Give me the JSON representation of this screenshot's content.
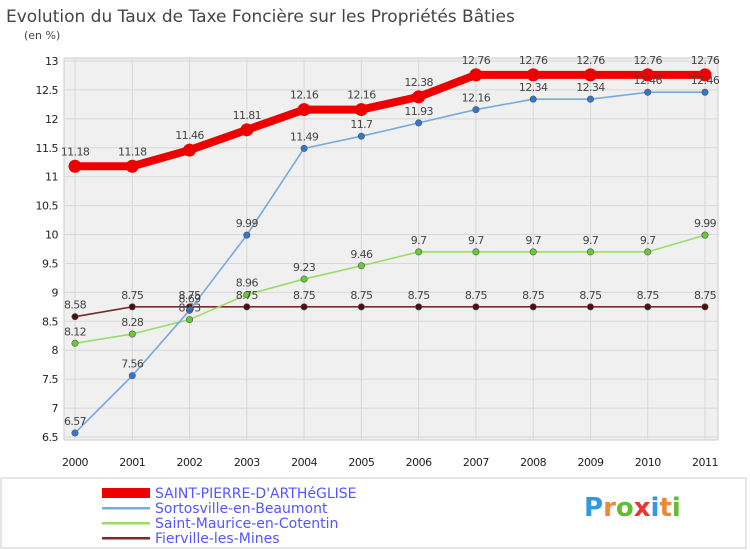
{
  "chart_data": {
    "type": "line",
    "title": "Evolution du Taux de Taxe Foncière sur les Propriétés Bâties",
    "ylabel": "(en %)",
    "xlabel": "",
    "x": [
      "2000",
      "2001",
      "2002",
      "2003",
      "2004",
      "2005",
      "2006",
      "2007",
      "2008",
      "2009",
      "2010",
      "2011"
    ],
    "ylim": [
      6.5,
      13
    ],
    "yticks": [
      6.5,
      7,
      7.5,
      8,
      8.5,
      9,
      9.5,
      10,
      10.5,
      11,
      11.5,
      12,
      12.5,
      13
    ],
    "yticklabels": [
      "6.5",
      "7",
      "7.5",
      "8",
      "8.5",
      "9",
      "9.5",
      "10",
      "10.5",
      "11",
      "11.5",
      "12",
      "12.5",
      "13"
    ],
    "grid": true,
    "legend_position": "bottom-left",
    "series": [
      {
        "name": "Fierville-les-Mines",
        "color": "#7a2a2a",
        "marker": "#4a1010",
        "values": [
          8.58,
          8.75,
          8.75,
          8.75,
          8.75,
          8.75,
          8.75,
          8.75,
          8.75,
          8.75,
          8.75,
          8.75
        ],
        "labels": [
          "8.58",
          "8.75",
          "8.75",
          "8.75",
          "8.75",
          "8.75",
          "8.75",
          "8.75",
          "8.75",
          "8.75",
          "8.75",
          "8.75"
        ]
      },
      {
        "name": "Saint-Maurice-en-Cotentin",
        "color": "#99dd66",
        "marker": "#66cc33",
        "values": [
          8.12,
          8.28,
          8.53,
          8.96,
          9.23,
          9.46,
          9.7,
          9.7,
          9.7,
          9.7,
          9.7,
          9.99
        ],
        "labels": [
          "8.12",
          "8.28",
          "8.53",
          "8.96",
          "9.23",
          "9.46",
          "9.7",
          "9.7",
          "9.7",
          "9.7",
          "9.7",
          "9.99"
        ]
      },
      {
        "name": "Sortosville-en-Beaumont",
        "color": "#77aadd",
        "marker": "#3377cc",
        "values": [
          6.57,
          7.56,
          8.69,
          9.99,
          11.49,
          11.7,
          11.93,
          12.16,
          12.34,
          12.34,
          12.46,
          12.46
        ],
        "labels": [
          "6.57",
          "7.56",
          "8.69",
          "9.99",
          "11.49",
          "11.7",
          "11.93",
          "12.16",
          "12.34",
          "12.34",
          "12.46",
          "12.46"
        ]
      },
      {
        "name": "SAINT-PIERRE-D'ARTHéGLISE",
        "color": "#ee0000",
        "marker": "#ee0000",
        "values": [
          11.18,
          11.18,
          11.46,
          11.81,
          12.16,
          12.16,
          12.38,
          12.76,
          12.76,
          12.76,
          12.76,
          12.76
        ],
        "labels": [
          "11.18",
          "11.18",
          "11.46",
          "11.81",
          "12.16",
          "12.16",
          "12.38",
          "12.76",
          "12.76",
          "12.76",
          "12.76",
          "12.76"
        ]
      }
    ],
    "legend": [
      {
        "name": "SAINT-PIERRE-D'ARTHéGLISE",
        "color": "#ee0000",
        "style": "thick"
      },
      {
        "name": "Sortosville-en-Beaumont",
        "color": "#77aadd",
        "style": "thin"
      },
      {
        "name": "Saint-Maurice-en-Cotentin",
        "color": "#99dd66",
        "style": "thin"
      },
      {
        "name": "Fierville-les-Mines",
        "color": "#7a2a2a",
        "style": "thin"
      }
    ]
  },
  "brand": {
    "letters": [
      "P",
      "r",
      "o",
      "x",
      "i",
      "t",
      "i"
    ],
    "colors": [
      "#3399dd",
      "#ee8833",
      "#66bb33",
      "#ee3333",
      "#3399dd",
      "#ee8833",
      "#66bb33"
    ]
  }
}
